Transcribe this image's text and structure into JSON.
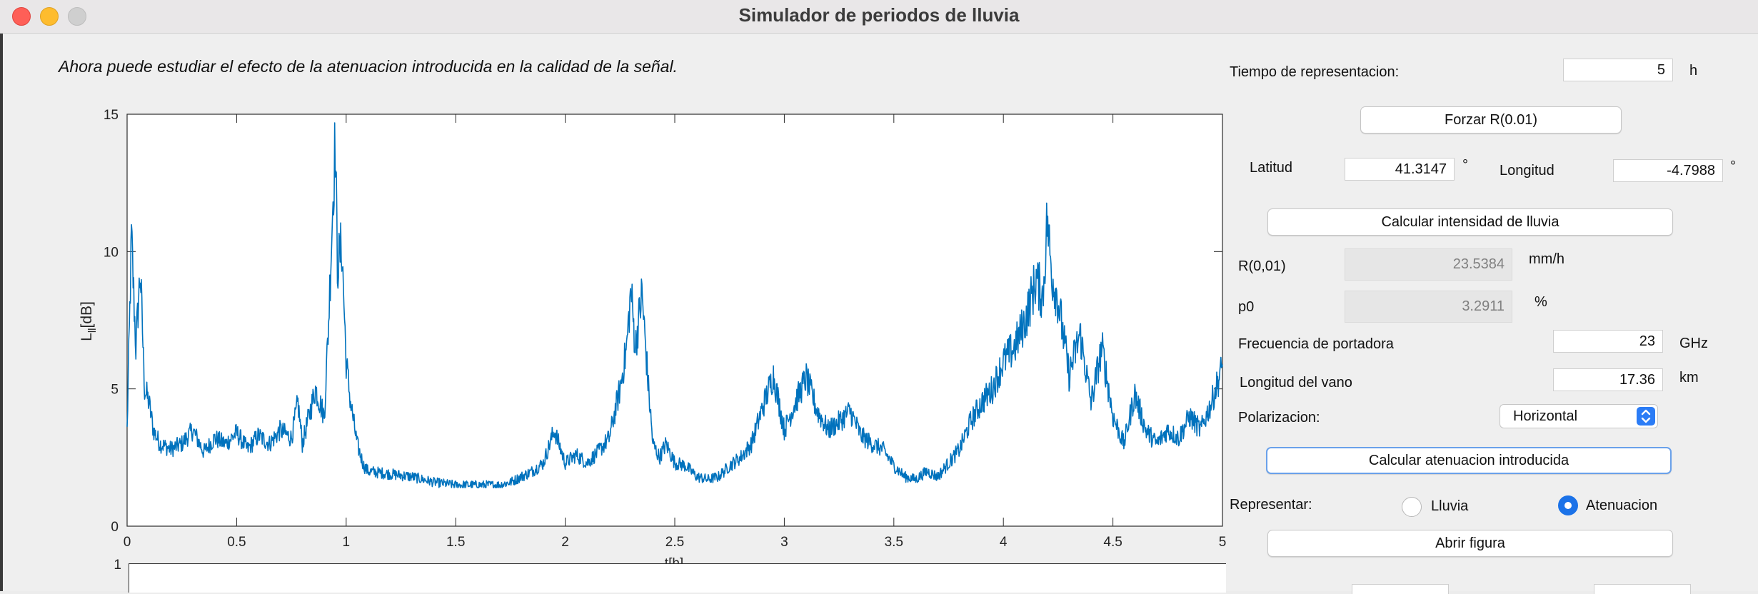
{
  "window": {
    "title": "Simulador de periodos de lluvia"
  },
  "instructions": "Ahora puede estudiar el efecto de la atenuacion introducida en la calidad de la señal.",
  "controls": {
    "tiempo_label": "Tiempo de representacion:",
    "tiempo_value": "5",
    "tiempo_unit": "h",
    "forzar_label": "Forzar R(0.01)",
    "latitud_label": "Latitud",
    "latitud_value": "41.3147",
    "latitud_unit": "°",
    "longitud_label": "Longitud",
    "longitud_value": "-4.7988",
    "longitud_unit": "°",
    "calc_intensidad_label": "Calcular intensidad de lluvia",
    "r001_label": "R(0,01)",
    "r001_value": "23.5384",
    "r001_unit": "mm/h",
    "p0_label": "p0",
    "p0_value": "3.2911",
    "p0_unit": "%",
    "frecuencia_label": "Frecuencia de portadora",
    "frecuencia_value": "23",
    "frecuencia_unit": "GHz",
    "vano_label": "Longitud del vano",
    "vano_value": "17.36",
    "vano_unit": "km",
    "polarizacion_label": "Polarizacion:",
    "polarizacion_value": "Horizontal",
    "calc_atenuacion_label": "Calcular atenuacion introducida",
    "representar_label": "Representar:",
    "radio_lluvia_label": "Lluvia",
    "radio_atenuacion_label": "Atenuacion",
    "representar_selected": "Atenuacion",
    "abrir_figura_label": "Abrir figura"
  },
  "colors": {
    "series": "#0072bd",
    "focus_ring": "#6aa1ea",
    "radio_selected": "#1b72e8"
  },
  "chart_data": {
    "type": "line",
    "title": "",
    "xlabel": "t[h]",
    "ylabel_main": "L",
    "ylabel_sub": "ll",
    "ylabel_unit": "[dB]",
    "xlim": [
      0,
      5
    ],
    "ylim": [
      0,
      15
    ],
    "xticks": [
      0,
      0.5,
      1,
      1.5,
      2,
      2.5,
      3,
      3.5,
      4,
      4.5,
      5
    ],
    "xtick_labels": [
      "0",
      "0.5",
      "1",
      "1.5",
      "2",
      "2.5",
      "3",
      "3.5",
      "4",
      "4.5",
      "5"
    ],
    "yticks": [
      0,
      5,
      10,
      15
    ],
    "ytick_labels": [
      "0",
      "5",
      "10",
      "15"
    ],
    "grid": false,
    "series": [
      {
        "x": [
          0,
          0.02,
          0.04,
          0.06,
          0.08,
          0.1,
          0.12,
          0.15,
          0.2,
          0.25,
          0.3,
          0.35,
          0.4,
          0.45,
          0.5,
          0.55,
          0.6,
          0.65,
          0.7,
          0.75,
          0.78,
          0.8,
          0.83,
          0.86,
          0.9,
          0.92,
          0.94,
          0.95,
          0.96,
          0.98,
          1.0,
          1.02,
          1.05,
          1.08,
          1.1,
          1.2,
          1.3,
          1.4,
          1.5,
          1.6,
          1.7,
          1.75,
          1.8,
          1.85,
          1.9,
          1.95,
          2.0,
          2.05,
          2.1,
          2.15,
          2.2,
          2.25,
          2.28,
          2.3,
          2.32,
          2.35,
          2.38,
          2.4,
          2.43,
          2.46,
          2.5,
          2.55,
          2.6,
          2.65,
          2.7,
          2.75,
          2.8,
          2.85,
          2.9,
          2.95,
          3.0,
          3.05,
          3.1,
          3.15,
          3.2,
          3.25,
          3.3,
          3.35,
          3.4,
          3.45,
          3.5,
          3.55,
          3.6,
          3.65,
          3.7,
          3.75,
          3.8,
          3.85,
          3.9,
          3.95,
          4.0,
          4.05,
          4.1,
          4.15,
          4.18,
          4.2,
          4.22,
          4.25,
          4.3,
          4.35,
          4.4,
          4.45,
          4.5,
          4.55,
          4.6,
          4.65,
          4.7,
          4.75,
          4.8,
          4.85,
          4.9,
          4.95,
          5.0
        ],
        "y": [
          3.5,
          10.5,
          6.5,
          9.3,
          5.0,
          4.5,
          3.5,
          3.0,
          2.8,
          3.0,
          3.5,
          2.7,
          3.2,
          3.0,
          3.4,
          2.8,
          3.3,
          3.0,
          3.5,
          3.2,
          4.5,
          3.0,
          4.0,
          5.0,
          4.0,
          7.5,
          12.0,
          14.0,
          9.5,
          10.2,
          6.0,
          4.5,
          3.0,
          2.2,
          2.0,
          1.9,
          1.8,
          1.6,
          1.5,
          1.5,
          1.5,
          1.6,
          1.8,
          2.0,
          2.3,
          3.5,
          2.3,
          2.6,
          2.3,
          2.7,
          3.2,
          5.0,
          6.5,
          8.6,
          6.5,
          8.5,
          5.0,
          3.0,
          2.5,
          3.0,
          2.3,
          2.2,
          1.8,
          1.7,
          1.8,
          2.2,
          2.5,
          3.0,
          4.3,
          5.5,
          3.5,
          4.5,
          5.4,
          4.2,
          3.5,
          3.8,
          4.2,
          3.3,
          3.0,
          2.8,
          2.2,
          1.8,
          1.7,
          2.0,
          1.8,
          2.3,
          2.8,
          3.8,
          4.5,
          5.0,
          6.0,
          6.5,
          7.5,
          9.0,
          8.3,
          11.2,
          9.2,
          8.2,
          5.5,
          7.0,
          4.5,
          6.5,
          4.0,
          3.0,
          4.8,
          3.5,
          3.0,
          3.5,
          3.2,
          4.0,
          3.5,
          4.5,
          5.8
        ]
      }
    ],
    "second_plot": {
      "ytick_labels": [
        "1"
      ]
    }
  }
}
